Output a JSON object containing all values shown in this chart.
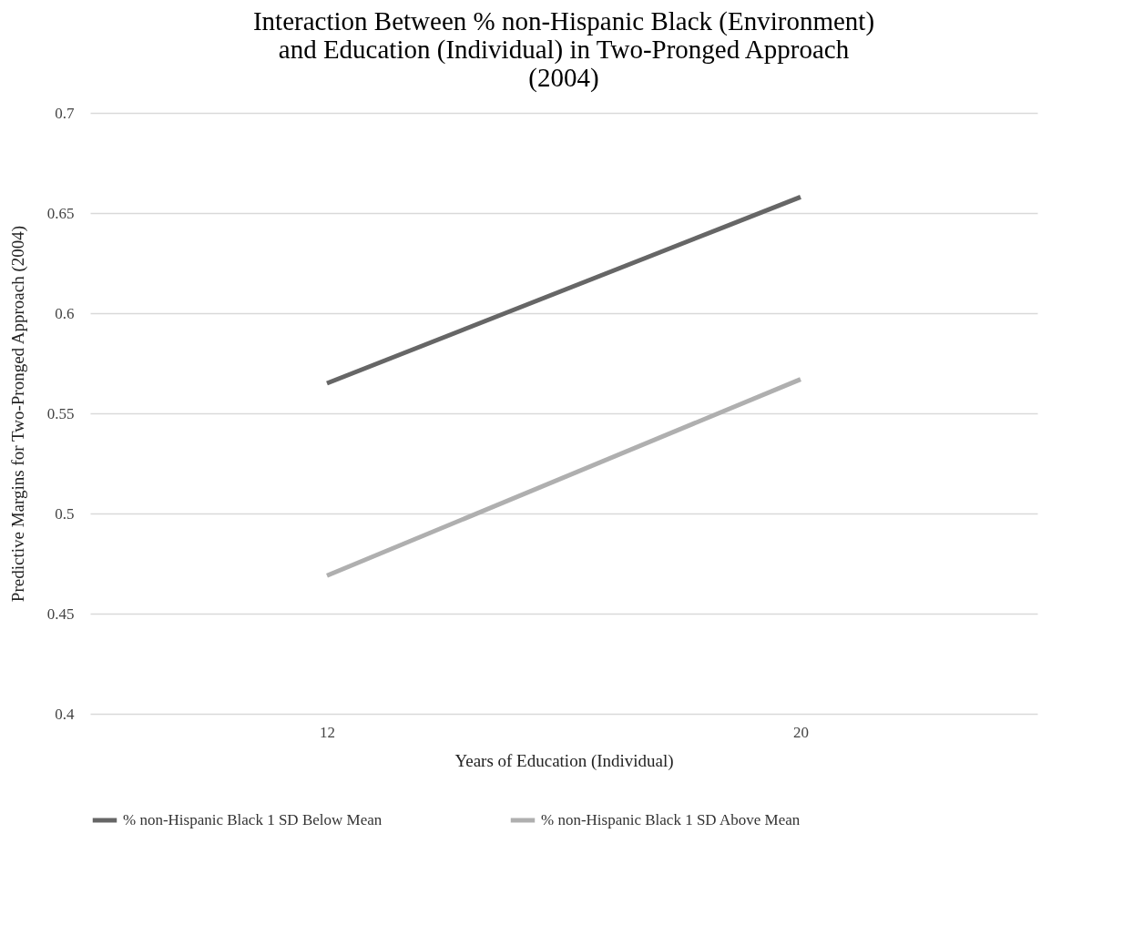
{
  "chart_data": {
    "type": "line",
    "title": "Interaction Between % non-Hispanic Black (Environment) and Education (Individual) in Two-Pronged Approach (2004)",
    "xlabel": "Years of Education (Individual)",
    "ylabel": "Predictive Margins for Two-Pronged Approach (2004)",
    "categories": [
      "12",
      "20"
    ],
    "series": [
      {
        "name": "% non-Hispanic Black 1 SD Below Mean",
        "color": "#666666",
        "values": [
          0.565,
          0.658
        ]
      },
      {
        "name": "% non-Hispanic Black 1 SD Above Mean",
        "color": "#afafaf",
        "values": [
          0.469,
          0.567
        ]
      }
    ],
    "ylim": [
      0.4,
      0.7
    ],
    "yticks": [
      0.4,
      0.45,
      0.5,
      0.55,
      0.6,
      0.65,
      0.7
    ],
    "grid": "y",
    "legend": "bottom",
    "marker": "none",
    "line_style": "solid"
  }
}
